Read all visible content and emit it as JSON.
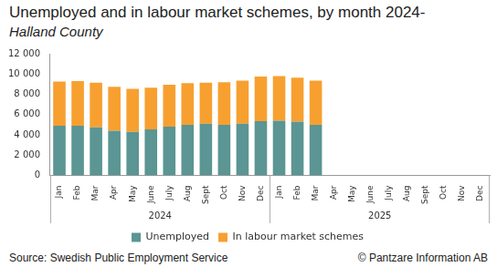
{
  "chart_data": {
    "type": "bar",
    "title": "Unemployed and in labour market schemes, by month 2024-",
    "subtitle": "Halland County",
    "annotations": [
      "Source: Swedish Public Employment Service",
      "© Pantzare Information AB"
    ],
    "x_groups": [
      {
        "label": "2024",
        "categories": [
          "Jan",
          "Feb",
          "Mar",
          "Apr",
          "May",
          "June",
          "July",
          "Aug",
          "Sept",
          "Oct",
          "Nov",
          "Dec"
        ]
      },
      {
        "label": "2025",
        "categories": [
          "Jan",
          "Feb",
          "Mar",
          "Apr",
          "May",
          "June",
          "July",
          "Aug",
          "Sept",
          "Oct",
          "Nov",
          "Dec"
        ]
      }
    ],
    "series": [
      {
        "name": "Unemployed",
        "color": "#5b9594",
        "values": [
          4900,
          4900,
          4750,
          4400,
          4300,
          4550,
          4800,
          5000,
          5100,
          5000,
          5100,
          5350,
          5400,
          5300,
          5000,
          null,
          null,
          null,
          null,
          null,
          null,
          null,
          null,
          null
        ]
      },
      {
        "name": "In labour market schemes",
        "color": "#f7a030",
        "values": [
          4350,
          4400,
          4400,
          4350,
          4250,
          4100,
          4150,
          4100,
          4050,
          4200,
          4250,
          4400,
          4400,
          4350,
          4350,
          null,
          null,
          null,
          null,
          null,
          null,
          null,
          null,
          null
        ]
      }
    ],
    "stacked": true,
    "ylim": [
      0,
      12000
    ],
    "yticks": [
      0,
      {
        "value": 2000,
        "label": "2 000"
      },
      {
        "value": 4000,
        "label": "4 000"
      },
      {
        "value": 6000,
        "label": "6 000"
      },
      {
        "value": 8000,
        "label": "8 000"
      },
      {
        "value": 10000,
        "label": "10 000"
      },
      {
        "value": 12000,
        "label": "12 000"
      }
    ],
    "grid": false,
    "legend": "bottom"
  }
}
